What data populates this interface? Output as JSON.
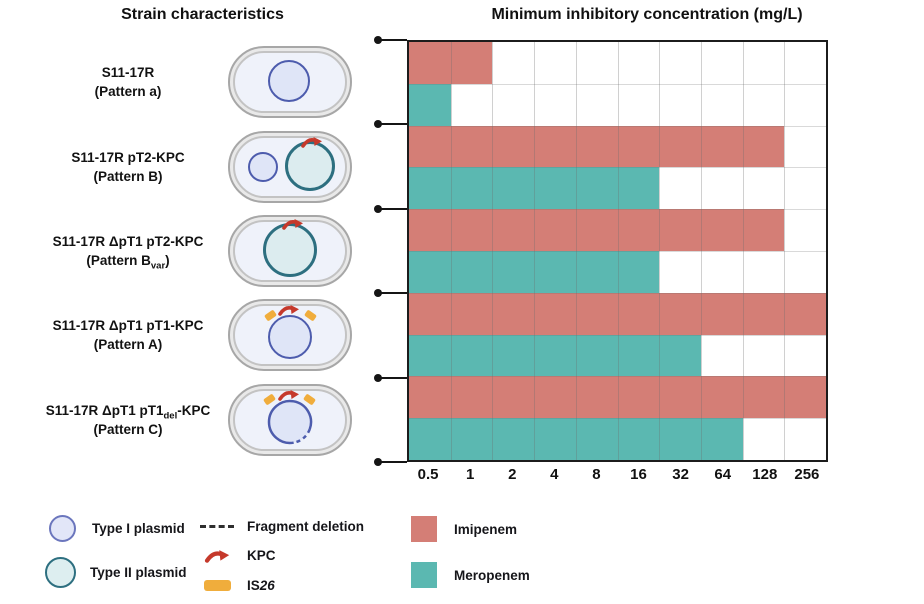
{
  "header": {
    "left": "Strain characteristics",
    "right": "Minimum inhibitory concentration (mg/L)"
  },
  "strains": [
    {
      "name_parts": [
        {
          "t": "S11-17R"
        }
      ],
      "pattern_parts": [
        {
          "t": "(Pattern a)"
        }
      ],
      "components": [
        "Type I plasmid"
      ]
    },
    {
      "name_parts": [
        {
          "t": "S11-17R pT2-KPC"
        }
      ],
      "pattern_parts": [
        {
          "t": "(Pattern B)"
        }
      ],
      "components": [
        "Type I plasmid",
        "Type II plasmid",
        "KPC"
      ]
    },
    {
      "name_parts": [
        {
          "t": "S11-17R ΔpT1 pT2-KPC"
        }
      ],
      "pattern_parts": [
        {
          "t": "(Pattern B"
        },
        {
          "t": "var",
          "sub": true
        },
        {
          "t": ")"
        }
      ],
      "components": [
        "Type II plasmid",
        "KPC"
      ]
    },
    {
      "name_parts": [
        {
          "t": "S11-17R ΔpT1 pT1-KPC"
        }
      ],
      "pattern_parts": [
        {
          "t": "(Pattern A)"
        }
      ],
      "components": [
        "Type I plasmid",
        "KPC",
        "IS26"
      ]
    },
    {
      "name_parts": [
        {
          "t": "S11-17R ΔpT1 pT1"
        },
        {
          "t": "del",
          "sub": true
        },
        {
          "t": "-KPC"
        }
      ],
      "pattern_parts": [
        {
          "t": "(Pattern C)"
        }
      ],
      "components": [
        "Type I plasmid with fragment deletion",
        "KPC",
        "IS26"
      ]
    }
  ],
  "chart_data": {
    "type": "bar",
    "orientation": "horizontal",
    "x_scale": "log2 doubling dilutions",
    "title": "Minimum inhibitory concentration (mg/L)",
    "x_tick_labels": [
      "0.5",
      "1",
      "2",
      "4",
      "8",
      "16",
      "32",
      "64",
      "128",
      "256"
    ],
    "categories": [
      "S11-17R (Pattern a)",
      "S11-17R pT2-KPC (Pattern B)",
      "S11-17R ΔpT1 pT2-KPC (Pattern Bvar)",
      "S11-17R ΔpT1 pT1-KPC (Pattern A)",
      "S11-17R ΔpT1 pT1del-KPC (Pattern C)"
    ],
    "series": [
      {
        "name": "Imipenem",
        "color": "#d47e76",
        "values": [
          1,
          128,
          128,
          256,
          256
        ]
      },
      {
        "name": "Meropenem",
        "color": "#5bb8b1",
        "values": [
          0.5,
          16,
          16,
          32,
          64
        ]
      }
    ],
    "xlim": [
      0.5,
      256
    ],
    "grid": true,
    "legend_position": "bottom"
  },
  "legend": {
    "type1": "Type I plasmid",
    "type2": "Type II plasmid",
    "deletion": "Fragment deletion",
    "kpc": "KPC",
    "is26_pre": "IS",
    "is26_num": "26",
    "imipenem": "Imipenem",
    "meropenem": "Meropenem"
  },
  "colors": {
    "imipenem": "#d47e76",
    "meropenem": "#5bb8b1",
    "kpc_red": "#c5392b",
    "is26_orange": "#f0ad3c",
    "type1_border": "#4d5cad",
    "type1_fill": "#dfe5f7",
    "type2_border": "#2d6f80",
    "type2_fill": "#dcecef"
  }
}
